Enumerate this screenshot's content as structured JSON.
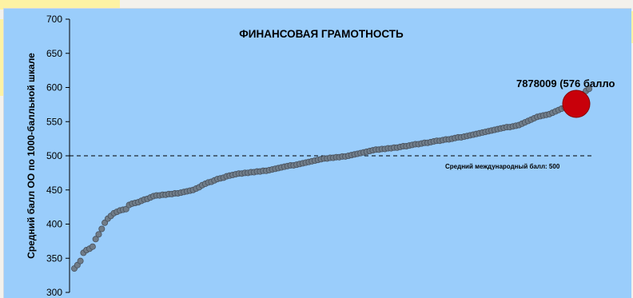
{
  "chart_data": {
    "type": "scatter",
    "title": "ФИНАНСОВАЯ ГРАМОТНОСТЬ",
    "xlabel": "",
    "ylabel": "Средний балл ОО по 1000-балльной шкале",
    "ylim": [
      300,
      700
    ],
    "yticks": [
      300,
      350,
      400,
      450,
      500,
      550,
      600,
      650,
      700
    ],
    "grid": false,
    "legend": "none",
    "x_axis_visible": false,
    "colors": {
      "background": "#9acdfb",
      "point_fill": "#707c88",
      "point_edge": "#46505c",
      "highlight": "#c8000a",
      "reference_line": "#000000"
    },
    "series": [
      {
        "values": [
          335,
          340,
          346,
          358,
          362,
          364,
          367,
          378,
          385,
          393,
          402,
          408,
          412,
          416,
          418,
          420,
          421,
          422,
          428,
          430,
          431,
          432,
          434,
          436,
          437,
          439,
          441,
          442,
          442,
          443,
          443,
          444,
          444,
          445,
          445,
          446,
          447,
          448,
          449,
          450,
          452,
          454,
          457,
          459,
          461,
          462,
          464,
          466,
          467,
          468,
          470,
          471,
          472,
          473,
          474,
          474,
          475,
          475,
          476,
          476,
          477,
          477,
          478,
          478,
          479,
          480,
          481,
          482,
          483,
          484,
          485,
          486,
          486,
          487,
          488,
          489,
          490,
          491,
          492,
          493,
          494,
          495,
          496,
          496,
          497,
          497,
          498,
          498,
          499,
          499,
          500,
          501,
          502,
          503,
          504,
          505,
          506,
          507,
          508,
          509,
          509,
          510,
          510,
          511,
          511,
          512,
          512,
          513,
          514,
          514,
          515,
          516,
          517,
          517,
          518,
          519,
          519,
          520,
          521,
          522,
          522,
          523,
          524,
          524,
          525,
          526,
          527,
          527,
          528,
          529,
          530,
          531,
          532,
          533,
          534,
          535,
          536,
          537,
          538,
          539,
          540,
          541,
          542,
          542,
          543,
          544,
          545,
          547,
          549,
          551,
          553,
          555,
          557,
          558,
          559,
          560,
          561,
          563,
          565,
          567,
          569,
          571,
          573,
          575,
          577,
          580,
          585,
          590,
          595,
          598
        ]
      }
    ],
    "reference_line": {
      "y": 500,
      "label": "Средний международный балл: 500"
    },
    "highlight": {
      "value": 576,
      "label": "7878009 (576 балло"
    }
  }
}
